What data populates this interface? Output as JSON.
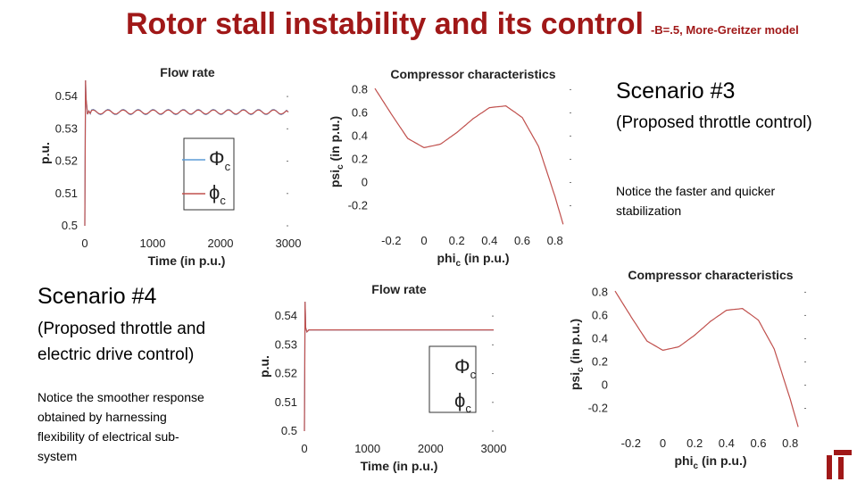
{
  "title": {
    "main": "Rotor stall instability and its control",
    "sub": "-B=.5, More-Greitzer model"
  },
  "scenario3": {
    "heading": "Scenario #3",
    "desc": "(Proposed throttle control)",
    "note": "Notice the faster and quicker stabilization"
  },
  "scenario4": {
    "heading": "Scenario #4",
    "desc": "(Proposed throttle and electric drive control)",
    "note": "Notice the smoother response obtained by harnessing flexibility of electrical sub-system"
  },
  "colors": {
    "title": "#a01818",
    "series_blue": "#5b9bd5",
    "series_red": "#c0504d",
    "logo": "#a01818"
  },
  "chart_data": [
    {
      "id": "flow-rate-s3",
      "type": "line",
      "title": "Flow rate",
      "xlabel": "Time (in p.u.)",
      "ylabel": "p.u.",
      "xlim": [
        0,
        3000
      ],
      "ylim": [
        0.5,
        0.545
      ],
      "xticks": [
        "0",
        "1000",
        "2000",
        "3000"
      ],
      "yticks": [
        "0.5",
        "0.51",
        "0.52",
        "0.53",
        "0.54"
      ],
      "legend": {
        "placement": "center",
        "entries": [
          "Φ",
          "ϕ"
        ],
        "subscript": "c"
      },
      "series": [
        {
          "name": "Φc",
          "color": "#5b9bd5",
          "x": [
            0,
            10,
            20,
            40,
            60,
            100,
            3000
          ],
          "y": [
            0.5,
            0.545,
            0.539,
            0.5345,
            0.5355,
            0.5352,
            0.5352
          ],
          "ripple": 0.0008
        },
        {
          "name": "ϕc",
          "color": "#c0504d",
          "x": [
            0,
            10,
            20,
            40,
            60,
            100,
            3000
          ],
          "y": [
            0.5,
            0.545,
            0.539,
            0.5345,
            0.5355,
            0.5352,
            0.5352
          ],
          "ripple": 0.0008
        }
      ]
    },
    {
      "id": "compressor-s3",
      "type": "line",
      "title": "Compressor characteristics",
      "xlabel": "phi",
      "xlabel_sub": "c",
      "xlabel_tail": " (in p.u.)",
      "ylabel": "psi",
      "ylabel_sub": "c",
      "ylabel_tail": " (in p.u.)",
      "xlim": [
        -0.3,
        0.9
      ],
      "ylim": [
        -0.35,
        0.88
      ],
      "xticks": [
        "-0.2",
        "0",
        "0.2",
        "0.4",
        "0.6",
        "0.8"
      ],
      "yticks": [
        "-0.2",
        "0",
        "0.2",
        "0.4",
        "0.6",
        "0.8"
      ],
      "series": [
        {
          "name": "psi_c",
          "color": "#c0504d",
          "x": [
            -0.3,
            -0.2,
            -0.1,
            0,
            0.1,
            0.2,
            0.3,
            0.4,
            0.5,
            0.6,
            0.7,
            0.8,
            0.85
          ],
          "y": [
            0.81,
            0.59,
            0.38,
            0.3,
            0.33,
            0.43,
            0.55,
            0.645,
            0.66,
            0.56,
            0.31,
            -0.12,
            -0.36
          ]
        }
      ]
    },
    {
      "id": "flow-rate-s4",
      "type": "line",
      "title": "Flow rate",
      "xlabel": "Time (in p.u.)",
      "ylabel": "p.u.",
      "xlim": [
        0,
        3000
      ],
      "ylim": [
        0.5,
        0.545
      ],
      "xticks": [
        "0",
        "1000",
        "2000",
        "3000"
      ],
      "yticks": [
        "0.5",
        "0.51",
        "0.52",
        "0.53",
        "0.54"
      ],
      "legend": {
        "placement": "right",
        "entries": [
          "Φ",
          "ϕ"
        ],
        "subscript": "c"
      },
      "series": [
        {
          "name": "Φc",
          "color": "#5b9bd5",
          "x": [
            0,
            10,
            20,
            40,
            70,
            150,
            3000
          ],
          "y": [
            0.5,
            0.545,
            0.536,
            0.5345,
            0.5352,
            0.5352,
            0.5352
          ],
          "ripple": 0
        },
        {
          "name": "ϕc",
          "color": "#c0504d",
          "x": [
            0,
            10,
            20,
            40,
            70,
            150,
            3000
          ],
          "y": [
            0.5,
            0.545,
            0.536,
            0.5345,
            0.5352,
            0.5352,
            0.5352
          ],
          "ripple": 0
        }
      ]
    },
    {
      "id": "compressor-s4",
      "type": "line",
      "title": "Compressor characteristics",
      "xlabel": "phi",
      "xlabel_sub": "c",
      "xlabel_tail": " (in p.u.)",
      "ylabel": "psi",
      "ylabel_sub": "c",
      "ylabel_tail": " (in p.u.)",
      "xlim": [
        -0.3,
        0.9
      ],
      "ylim": [
        -0.35,
        0.88
      ],
      "xticks": [
        "-0.2",
        "0",
        "0.2",
        "0.4",
        "0.6",
        "0.8"
      ],
      "yticks": [
        "-0.2",
        "0",
        "0.2",
        "0.4",
        "0.6",
        "0.8"
      ],
      "series": [
        {
          "name": "psi_c",
          "color": "#c0504d",
          "x": [
            -0.3,
            -0.2,
            -0.1,
            0,
            0.1,
            0.2,
            0.3,
            0.4,
            0.5,
            0.6,
            0.7,
            0.8,
            0.85
          ],
          "y": [
            0.81,
            0.59,
            0.38,
            0.3,
            0.33,
            0.43,
            0.55,
            0.645,
            0.66,
            0.56,
            0.31,
            -0.12,
            -0.36
          ]
        }
      ]
    }
  ]
}
